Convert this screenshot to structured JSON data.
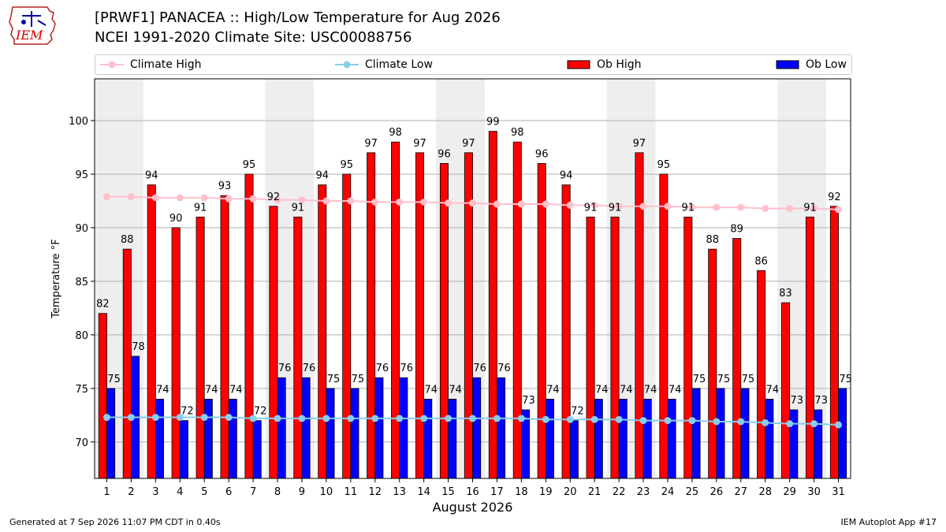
{
  "header": {
    "logo_text": "IEM",
    "title_line1": "[PRWF1] PANACEA :: High/Low Temperature for Aug 2026",
    "title_line2": "NCEI 1991-2020 Climate Site: USC00088756"
  },
  "legend": [
    {
      "label": "Climate High",
      "kind": "line",
      "color": "#ffc0cb"
    },
    {
      "label": "Climate Low",
      "kind": "line",
      "color": "#87ceeb"
    },
    {
      "label": "Ob High",
      "kind": "bar",
      "color": "#ff0000"
    },
    {
      "label": "Ob Low",
      "kind": "bar",
      "color": "#0000ff"
    }
  ],
  "footer": {
    "left": "Generated at 7 Sep 2026 11:07 PM CDT in 0.40s",
    "right": "IEM Autoplot App #17"
  },
  "chart_data": {
    "type": "bar",
    "xlabel": "August 2026",
    "ylabel": "Temperature °F",
    "ylim": [
      66.6,
      103.9
    ],
    "yticks": [
      70,
      75,
      80,
      85,
      90,
      95,
      100
    ],
    "grid": true,
    "legend_position": "top",
    "weekend_shading": [
      [
        1,
        2
      ],
      [
        8,
        9
      ],
      [
        15,
        16
      ],
      [
        22,
        23
      ],
      [
        29,
        30
      ]
    ],
    "categories": [
      "1",
      "2",
      "3",
      "4",
      "5",
      "6",
      "7",
      "8",
      "9",
      "10",
      "11",
      "12",
      "13",
      "14",
      "15",
      "16",
      "17",
      "18",
      "19",
      "20",
      "21",
      "22",
      "23",
      "24",
      "25",
      "26",
      "27",
      "28",
      "29",
      "30",
      "31"
    ],
    "series": [
      {
        "name": "Ob High",
        "kind": "bar",
        "color": "#ff0000",
        "values": [
          82,
          88,
          94,
          90,
          91,
          93,
          95,
          92,
          91,
          94,
          95,
          97,
          98,
          97,
          96,
          97,
          99,
          98,
          96,
          94,
          91,
          91,
          97,
          95,
          91,
          88,
          89,
          86,
          83,
          91,
          92
        ]
      },
      {
        "name": "Ob Low",
        "kind": "bar",
        "color": "#0000ff",
        "values": [
          75,
          78,
          74,
          72,
          74,
          74,
          72,
          76,
          76,
          75,
          75,
          76,
          76,
          74,
          74,
          76,
          76,
          73,
          74,
          72,
          74,
          74,
          74,
          74,
          75,
          75,
          75,
          74,
          73,
          73,
          75
        ]
      },
      {
        "name": "Climate High",
        "kind": "line",
        "color": "#ffc0cb",
        "values": [
          92.9,
          92.9,
          92.8,
          92.8,
          92.8,
          92.7,
          92.7,
          92.6,
          92.6,
          92.5,
          92.5,
          92.4,
          92.4,
          92.4,
          92.3,
          92.3,
          92.2,
          92.2,
          92.2,
          92.1,
          92.1,
          92.0,
          92.0,
          92.0,
          91.9,
          91.9,
          91.9,
          91.8,
          91.8,
          91.8,
          91.7
        ]
      },
      {
        "name": "Climate Low",
        "kind": "line",
        "color": "#87ceeb",
        "values": [
          72.3,
          72.3,
          72.3,
          72.3,
          72.3,
          72.3,
          72.2,
          72.2,
          72.2,
          72.2,
          72.2,
          72.2,
          72.2,
          72.2,
          72.2,
          72.2,
          72.2,
          72.2,
          72.1,
          72.1,
          72.1,
          72.1,
          72.0,
          72.0,
          72.0,
          71.9,
          71.9,
          71.8,
          71.7,
          71.7,
          71.6
        ]
      }
    ]
  }
}
